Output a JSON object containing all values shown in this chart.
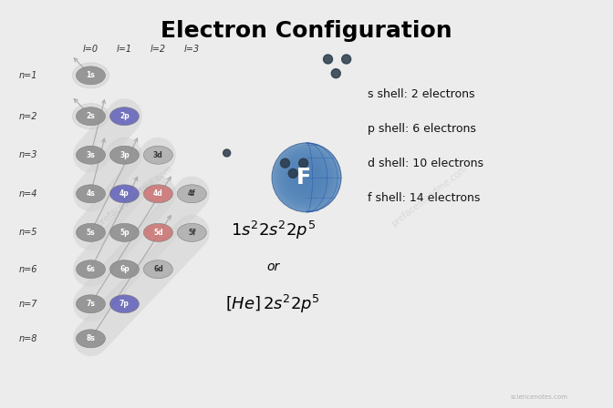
{
  "title": "Electron Configuration",
  "title_fontsize": 18,
  "bg_color": "#ececec",
  "n_labels": [
    "n=1",
    "n=2",
    "n=3",
    "n=4",
    "n=5",
    "n=6",
    "n=7",
    "n=8"
  ],
  "l_labels": [
    "l=0",
    "l=1",
    "l=2",
    "l=3"
  ],
  "orbitals": [
    {
      "label": "1s",
      "n": 1,
      "l": 0,
      "color": "#909090",
      "text_color": "white",
      "highlight": false
    },
    {
      "label": "2s",
      "n": 2,
      "l": 0,
      "color": "#909090",
      "text_color": "white",
      "highlight": false
    },
    {
      "label": "2p",
      "n": 2,
      "l": 1,
      "color": "#6666bb",
      "text_color": "white",
      "highlight": true
    },
    {
      "label": "3s",
      "n": 3,
      "l": 0,
      "color": "#909090",
      "text_color": "white",
      "highlight": false
    },
    {
      "label": "3p",
      "n": 3,
      "l": 1,
      "color": "#909090",
      "text_color": "white",
      "highlight": false
    },
    {
      "label": "3d",
      "n": 3,
      "l": 2,
      "color": "#b0b0b0",
      "text_color": "#333333",
      "highlight": false
    },
    {
      "label": "4s",
      "n": 4,
      "l": 0,
      "color": "#909090",
      "text_color": "white",
      "highlight": false
    },
    {
      "label": "4p",
      "n": 4,
      "l": 1,
      "color": "#6666bb",
      "text_color": "white",
      "highlight": true
    },
    {
      "label": "4d",
      "n": 4,
      "l": 2,
      "color": "#cc7777",
      "text_color": "white",
      "highlight": true
    },
    {
      "label": "4f",
      "n": 4,
      "l": 3,
      "color": "#b0b0b0",
      "text_color": "#333333",
      "highlight": false
    },
    {
      "label": "5s",
      "n": 5,
      "l": 0,
      "color": "#909090",
      "text_color": "white",
      "highlight": false
    },
    {
      "label": "5p",
      "n": 5,
      "l": 1,
      "color": "#909090",
      "text_color": "white",
      "highlight": false
    },
    {
      "label": "5d",
      "n": 5,
      "l": 2,
      "color": "#cc7777",
      "text_color": "white",
      "highlight": true
    },
    {
      "label": "5f",
      "n": 5,
      "l": 3,
      "color": "#b0b0b0",
      "text_color": "#333333",
      "highlight": false
    },
    {
      "label": "6s",
      "n": 6,
      "l": 0,
      "color": "#909090",
      "text_color": "white",
      "highlight": false
    },
    {
      "label": "6p",
      "n": 6,
      "l": 1,
      "color": "#909090",
      "text_color": "white",
      "highlight": false
    },
    {
      "label": "6d",
      "n": 6,
      "l": 2,
      "color": "#b0b0b0",
      "text_color": "#333333",
      "highlight": false
    },
    {
      "label": "7s",
      "n": 7,
      "l": 0,
      "color": "#909090",
      "text_color": "white",
      "highlight": false
    },
    {
      "label": "7p",
      "n": 7,
      "l": 1,
      "color": "#6666bb",
      "text_color": "white",
      "highlight": true
    },
    {
      "label": "8s",
      "n": 8,
      "l": 0,
      "color": "#909090",
      "text_color": "white",
      "highlight": false
    }
  ],
  "shell_info": [
    "s shell: 2 electrons",
    "p shell: 6 electrons",
    "d shell: 10 electrons",
    "f shell: 14 electrons"
  ],
  "fluorine_label": "F",
  "watermark": "sciencenotes.com"
}
